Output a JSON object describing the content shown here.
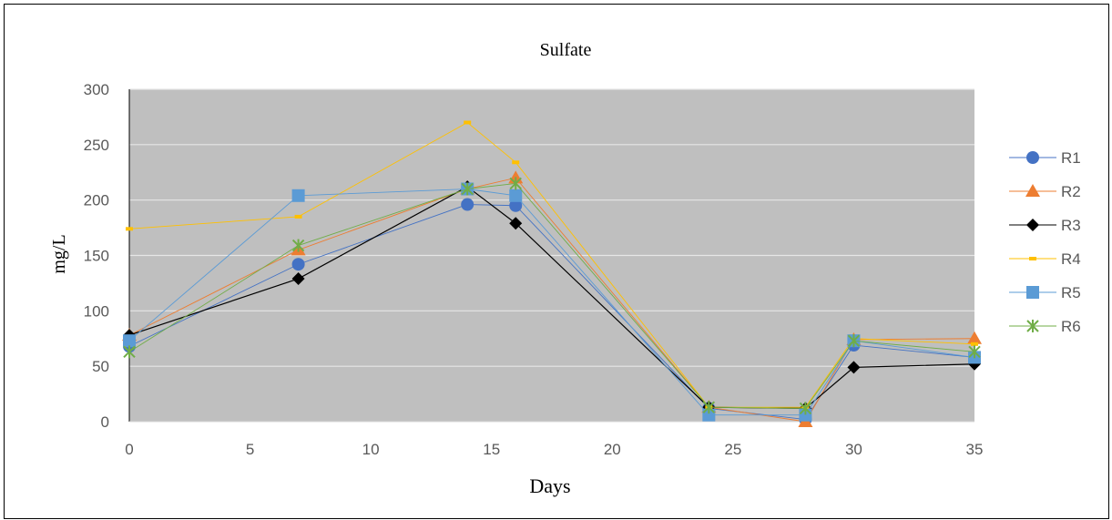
{
  "chart_data": {
    "type": "line",
    "title": "Sulfate",
    "xlabel": "Days",
    "ylabel": "mg/L",
    "xlim": [
      0,
      35
    ],
    "ylim": [
      0,
      300
    ],
    "xticks": [
      0,
      5,
      10,
      15,
      20,
      25,
      30,
      35
    ],
    "yticks": [
      0,
      50,
      100,
      150,
      200,
      250,
      300
    ],
    "grid": "horizontal",
    "legend": "right",
    "plot_background": "#BFBFBF",
    "x": [
      0,
      7,
      14,
      16,
      24,
      28,
      30,
      35
    ],
    "series": [
      {
        "name": "R1",
        "color": "#4472C4",
        "marker": "circle",
        "values": [
          68,
          142,
          196,
          195,
          12,
          2,
          69,
          58
        ]
      },
      {
        "name": "R2",
        "color": "#ED7D31",
        "marker": "triangle",
        "values": [
          78,
          155,
          210,
          220,
          13,
          0,
          74,
          75
        ]
      },
      {
        "name": "R3",
        "color": "#000000",
        "marker": "diamond",
        "values": [
          78,
          129,
          212,
          179,
          13,
          12,
          49,
          52
        ]
      },
      {
        "name": "R4",
        "color": "#FFC000",
        "marker": "dash",
        "values": [
          174,
          185,
          270,
          234,
          13,
          13,
          75,
          70
        ]
      },
      {
        "name": "R5",
        "color": "#5B9BD5",
        "marker": "square",
        "values": [
          73,
          204,
          210,
          204,
          6,
          6,
          73,
          58
        ]
      },
      {
        "name": "R6",
        "color": "#70AD47",
        "marker": "star",
        "values": [
          63,
          159,
          210,
          215,
          13,
          12,
          73,
          63
        ]
      }
    ]
  }
}
